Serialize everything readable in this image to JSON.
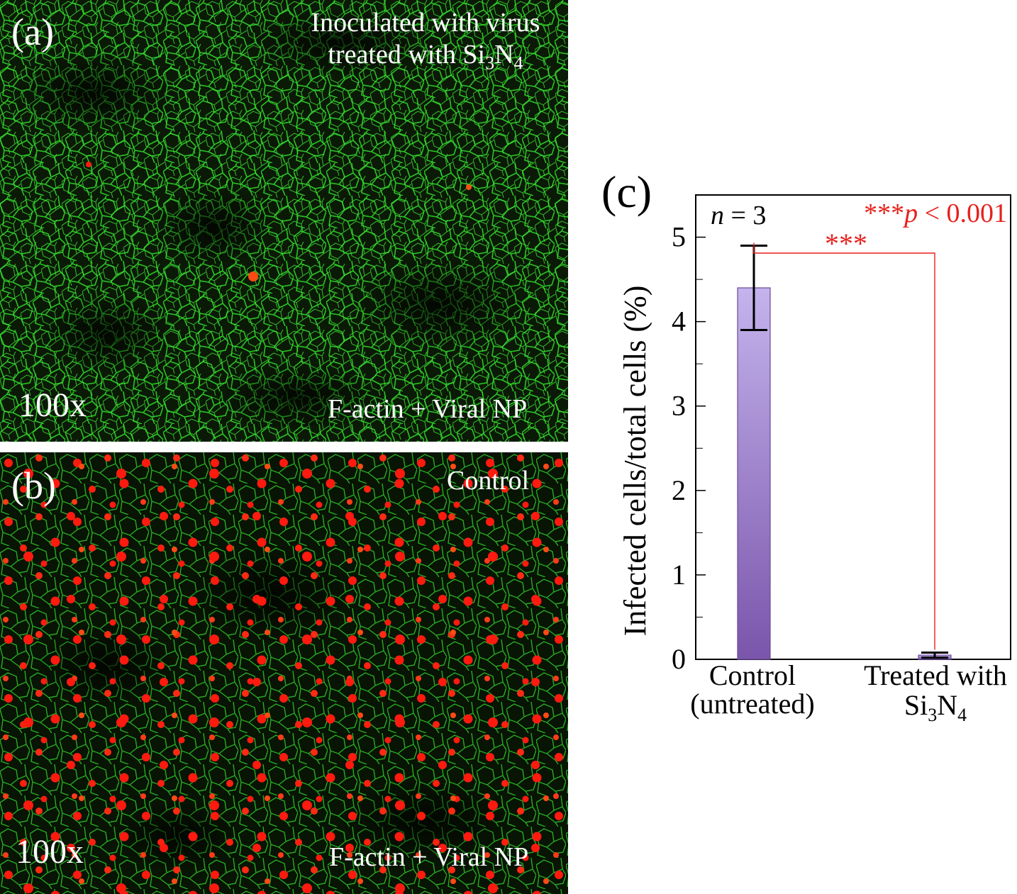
{
  "panel_a": {
    "label": "(a)",
    "title_line1": "Inoculated with virus",
    "title_line2_prefix": "treated with Si",
    "title_line2_sub1": "3",
    "title_line2_mid": "N",
    "title_line2_sub2": "4",
    "magnification": "100x",
    "stain": "F-actin + Viral NP",
    "infected_cell_count_visible": 3
  },
  "panel_b": {
    "label": "(b)",
    "title": "Control",
    "magnification": "100x",
    "stain": "F-actin + Viral NP",
    "infected_cell_density": "high"
  },
  "colors": {
    "factin_green": "#2fe02a",
    "viral_np_red": "#ff1a10",
    "bar_top": "#c4b3ec",
    "bar_bottom": "#7a55ab",
    "bar_edge": "#6a4b98",
    "significance_red": "#e8201c",
    "axis_black": "#000000"
  },
  "chart_data": {
    "type": "bar",
    "panel_label": "(c)",
    "categories": [
      "Control (untreated)",
      "Treated with Si3N4"
    ],
    "category_labels": [
      [
        "Control",
        "(untreated)"
      ],
      [
        "Treated with",
        "Si",
        "3",
        "N",
        "4"
      ]
    ],
    "values": [
      4.4,
      0.05
    ],
    "errors": [
      0.5,
      0.03
    ],
    "ylabel": "Infected cells/total cells (%)",
    "ylim": [
      0,
      5.5
    ],
    "y_major_ticks": [
      0,
      1,
      2,
      3,
      4,
      5
    ],
    "y_minor_ticks": [
      0.5,
      1.5,
      2.5,
      3.5,
      4.5
    ],
    "annotations": {
      "n_label": "n",
      "n_value": " = 3",
      "stars": "***",
      "p_label": "p",
      "p_value": " < 0.001",
      "bracket_stars": "***"
    },
    "grid": false
  }
}
